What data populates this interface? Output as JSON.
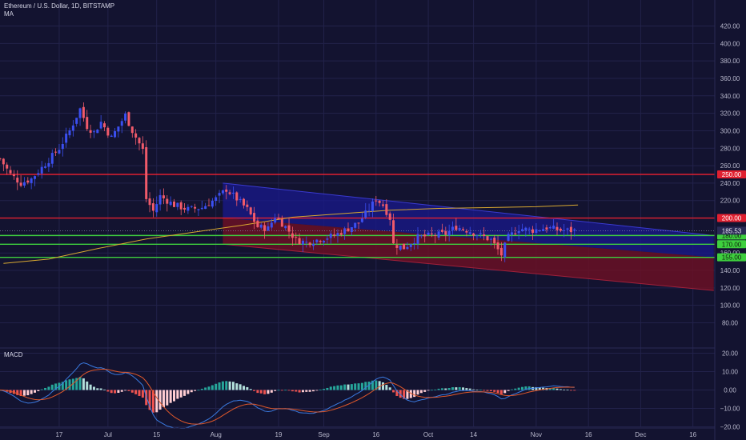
{
  "header": {
    "symbol": "Ethereum / U.S. Dollar, 1D, BITSTAMP",
    "indicator": "MA"
  },
  "macd_label": "MACD",
  "colors": {
    "background": "#131330",
    "grid": "#22224a",
    "up": "#3b4ff0",
    "down": "#f05a6a",
    "resistance": "#e02030",
    "support": "#3ecf3e",
    "ma": "#d8a830",
    "macd_line": "#3a7ae0",
    "signal_line": "#e0582a",
    "channel_blue": "#1a1a8c",
    "channel_red": "#6a1025",
    "hist_pos_strong": "#26a69a",
    "hist_pos_weak": "#b2dfdb",
    "hist_neg_strong": "#ef5350",
    "hist_neg_weak": "#ffcdd2"
  },
  "chart_data": [
    {
      "type": "candlestick",
      "title": "Ethereum / U.S. Dollar, 1D, BITSTAMP",
      "ylim": [
        60,
        425
      ],
      "y_ticks": [
        80,
        100,
        120,
        140,
        160,
        180,
        200,
        220,
        240,
        260,
        280,
        300,
        320,
        340,
        360,
        380,
        400,
        420
      ],
      "x_tick_labels": [
        {
          "label": "17",
          "day": 17
        },
        {
          "label": "Jul",
          "day": 31
        },
        {
          "label": "15",
          "day": 45
        },
        {
          "label": "Aug",
          "day": 62
        },
        {
          "label": "19",
          "day": 80
        },
        {
          "label": "Sep",
          "day": 93
        },
        {
          "label": "16",
          "day": 108
        },
        {
          "label": "Oct",
          "day": 123
        },
        {
          "label": "14",
          "day": 136
        },
        {
          "label": "Nov",
          "day": 154
        },
        {
          "label": "16",
          "day": 169
        },
        {
          "label": "Dec",
          "day": 184
        },
        {
          "label": "16",
          "day": 199
        }
      ],
      "last_price": 185.53,
      "horizontal_levels": [
        {
          "value": 250,
          "label": "250.00",
          "kind": "resistance"
        },
        {
          "value": 200,
          "label": "200.00",
          "kind": "resistance"
        },
        {
          "value": 180,
          "label": "180.00",
          "kind": "support"
        },
        {
          "value": 170,
          "label": "170.00",
          "kind": "support"
        },
        {
          "value": 155,
          "label": "155.00",
          "kind": "support"
        }
      ],
      "channel": {
        "start_day": 64,
        "end_day": 205,
        "upper_start": 240,
        "upper_end": 180,
        "mid_start": 200,
        "mid_end": 155,
        "lower_start": 170,
        "lower_end": 117
      },
      "ma_series": [
        {
          "day": 1,
          "value": 148
        },
        {
          "day": 14,
          "value": 153
        },
        {
          "day": 28,
          "value": 165
        },
        {
          "day": 42,
          "value": 176
        },
        {
          "day": 56,
          "value": 184
        },
        {
          "day": 70,
          "value": 192
        },
        {
          "day": 84,
          "value": 201
        },
        {
          "day": 98,
          "value": 205
        },
        {
          "day": 112,
          "value": 209
        },
        {
          "day": 126,
          "value": 211
        },
        {
          "day": 140,
          "value": 212
        },
        {
          "day": 154,
          "value": 213
        },
        {
          "day": 166,
          "value": 215
        }
      ],
      "price_anchors": [
        {
          "day": 0,
          "value": 268
        },
        {
          "day": 3,
          "value": 250
        },
        {
          "day": 6,
          "value": 240
        },
        {
          "day": 9,
          "value": 245
        },
        {
          "day": 13,
          "value": 262
        },
        {
          "day": 17,
          "value": 280
        },
        {
          "day": 20,
          "value": 300
        },
        {
          "day": 23,
          "value": 325
        },
        {
          "day": 25,
          "value": 305
        },
        {
          "day": 27,
          "value": 298
        },
        {
          "day": 29,
          "value": 310
        },
        {
          "day": 32,
          "value": 292
        },
        {
          "day": 36,
          "value": 318
        },
        {
          "day": 38,
          "value": 300
        },
        {
          "day": 41,
          "value": 278
        },
        {
          "day": 42,
          "value": 222
        },
        {
          "day": 44,
          "value": 208
        },
        {
          "day": 46,
          "value": 225
        },
        {
          "day": 50,
          "value": 215
        },
        {
          "day": 54,
          "value": 210
        },
        {
          "day": 58,
          "value": 212
        },
        {
          "day": 62,
          "value": 222
        },
        {
          "day": 65,
          "value": 233
        },
        {
          "day": 68,
          "value": 222
        },
        {
          "day": 71,
          "value": 210
        },
        {
          "day": 74,
          "value": 190
        },
        {
          "day": 77,
          "value": 188
        },
        {
          "day": 79,
          "value": 202
        },
        {
          "day": 82,
          "value": 190
        },
        {
          "day": 85,
          "value": 175
        },
        {
          "day": 88,
          "value": 172
        },
        {
          "day": 92,
          "value": 176
        },
        {
          "day": 96,
          "value": 180
        },
        {
          "day": 100,
          "value": 188
        },
        {
          "day": 103,
          "value": 195
        },
        {
          "day": 106,
          "value": 210
        },
        {
          "day": 108,
          "value": 222
        },
        {
          "day": 110,
          "value": 215
        },
        {
          "day": 112,
          "value": 200
        },
        {
          "day": 113,
          "value": 170
        },
        {
          "day": 116,
          "value": 166
        },
        {
          "day": 120,
          "value": 178
        },
        {
          "day": 124,
          "value": 180
        },
        {
          "day": 128,
          "value": 182
        },
        {
          "day": 131,
          "value": 190
        },
        {
          "day": 135,
          "value": 185
        },
        {
          "day": 138,
          "value": 180
        },
        {
          "day": 141,
          "value": 175
        },
        {
          "day": 144,
          "value": 158
        },
        {
          "day": 146,
          "value": 178
        },
        {
          "day": 149,
          "value": 188
        },
        {
          "day": 153,
          "value": 186
        },
        {
          "day": 157,
          "value": 189
        },
        {
          "day": 161,
          "value": 186
        },
        {
          "day": 165,
          "value": 185.53
        }
      ],
      "candles_end_day": 165
    },
    {
      "type": "histogram+line",
      "title": "MACD",
      "ylim": [
        -28,
        24
      ],
      "y_ticks": [
        -20,
        -10,
        0,
        10,
        20
      ],
      "y_tick_labels": [
        "−20.00",
        "−10.00",
        "0.00",
        "10.00",
        "20.00"
      ]
    }
  ]
}
